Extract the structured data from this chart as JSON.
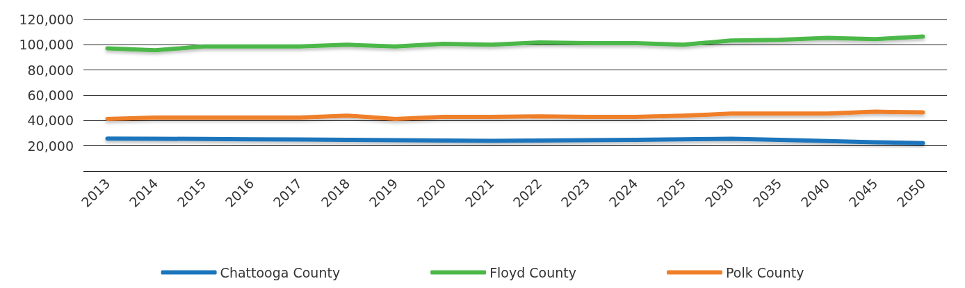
{
  "chart_data": {
    "type": "line",
    "categories": [
      "2013",
      "2014",
      "2015",
      "2016",
      "2017",
      "2018",
      "2019",
      "2020",
      "2021",
      "2022",
      "2023",
      "2024",
      "2025",
      "2030",
      "2035",
      "2040",
      "2045",
      "2050"
    ],
    "series": [
      {
        "name": "Chattooga County",
        "color": "#1a75bc",
        "values": [
          25800,
          25600,
          25400,
          25200,
          25000,
          24800,
          24500,
          24200,
          23900,
          24200,
          24500,
          24800,
          25200,
          25600,
          24800,
          23800,
          22900,
          22200
        ]
      },
      {
        "name": "Floyd County",
        "color": "#4cb848",
        "values": [
          97200,
          95600,
          98700,
          98700,
          98700,
          100000,
          98700,
          100800,
          100000,
          101800,
          101300,
          101300,
          100000,
          103400,
          103900,
          105400,
          104400,
          106500
        ]
      },
      {
        "name": "Polk County",
        "color": "#f07f2a",
        "values": [
          41300,
          42400,
          42400,
          42400,
          42400,
          43900,
          41300,
          42900,
          42900,
          43400,
          42900,
          42900,
          43900,
          45500,
          45500,
          45500,
          47000,
          46500
        ]
      }
    ],
    "ylim": [
      0,
      120000
    ],
    "yticks": [
      {
        "value": 0,
        "label": null
      },
      {
        "value": 20000,
        "label": "20,000"
      },
      {
        "value": 40000,
        "label": "40,000"
      },
      {
        "value": 60000,
        "label": "60,000"
      },
      {
        "value": 80000,
        "label": "80,000"
      },
      {
        "value": 100000,
        "label": "100,000"
      },
      {
        "value": 120000,
        "label": "120,000"
      }
    ],
    "grid": "y",
    "legend": "bottom",
    "marker": "none",
    "line_style": "solid"
  }
}
